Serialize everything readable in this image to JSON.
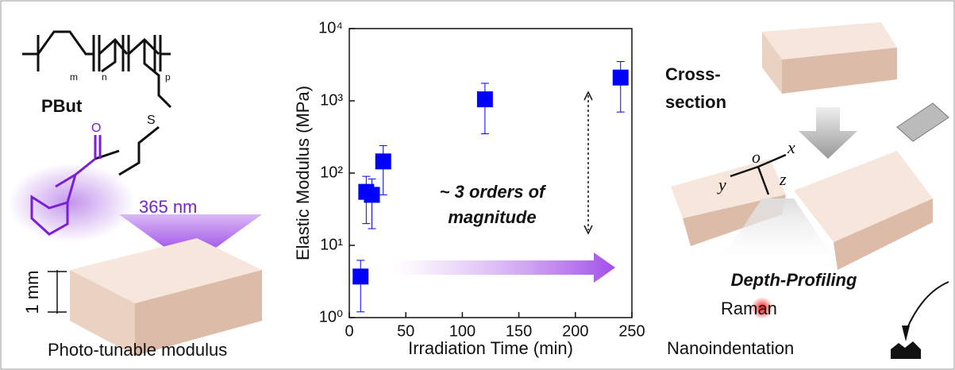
{
  "chart_data": {
    "type": "scatter",
    "x_label": "Irradiation Time (min)",
    "y_label": "Elastic Modulus (MPa)",
    "x": [
      10,
      15,
      20,
      30,
      120,
      240
    ],
    "values": [
      3.7,
      55,
      50,
      145,
      1050,
      2100
    ],
    "errors": [
      2.5,
      35,
      33,
      95,
      700,
      1400
    ],
    "color": "#0000ff",
    "xlim": [
      0,
      250
    ],
    "xticks": [
      0,
      50,
      100,
      150,
      200,
      250
    ],
    "ylim": [
      1,
      10000
    ],
    "log_y": true,
    "yticks": [
      {
        "value": 1,
        "label": "10⁰"
      },
      {
        "value": 10,
        "label": "10¹"
      },
      {
        "value": 100,
        "label": "10²"
      },
      {
        "value": 1000,
        "label": "10³"
      },
      {
        "value": 10000,
        "label": "10⁴"
      }
    ],
    "annotation": [
      "~ 3 orders of",
      "magnitude"
    ]
  },
  "left_panel": {
    "polymer": "PBut",
    "subscripts": [
      "m",
      "n",
      "p"
    ],
    "atoms": [
      "O",
      "S"
    ],
    "light": "365 nm",
    "thickness": "1 mm",
    "caption": "Photo-tunable modulus"
  },
  "right_panel": {
    "step": [
      "Cross-",
      "section"
    ],
    "axes": [
      "x",
      "y",
      "z",
      "o"
    ],
    "method": "Depth-Profiling",
    "techniques": [
      "Raman",
      "Nanoindentation"
    ]
  }
}
